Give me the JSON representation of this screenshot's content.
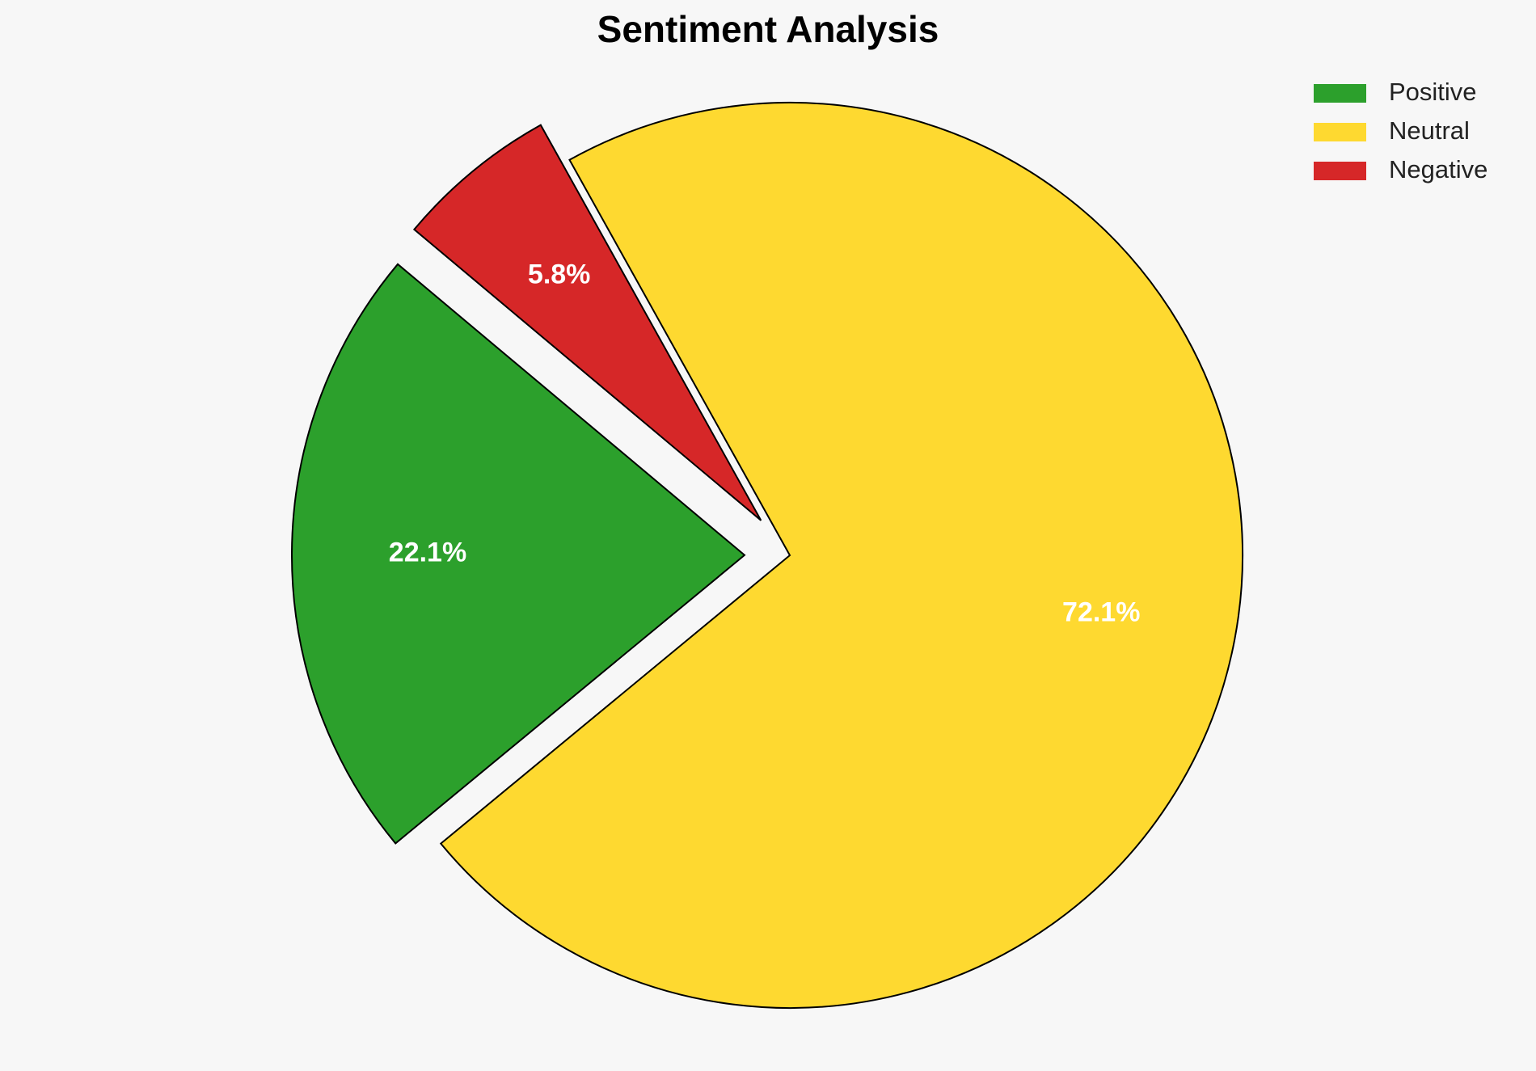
{
  "chart_data": {
    "type": "pie",
    "title": "Sentiment Analysis",
    "categories": [
      "Positive",
      "Neutral",
      "Negative"
    ],
    "values": [
      22.1,
      72.1,
      5.8
    ],
    "value_labels": [
      "22.1%",
      "72.1%",
      "5.8%"
    ],
    "colors": [
      "#2ca02c",
      "#fed930",
      "#d62728"
    ],
    "legend": "upper right"
  }
}
